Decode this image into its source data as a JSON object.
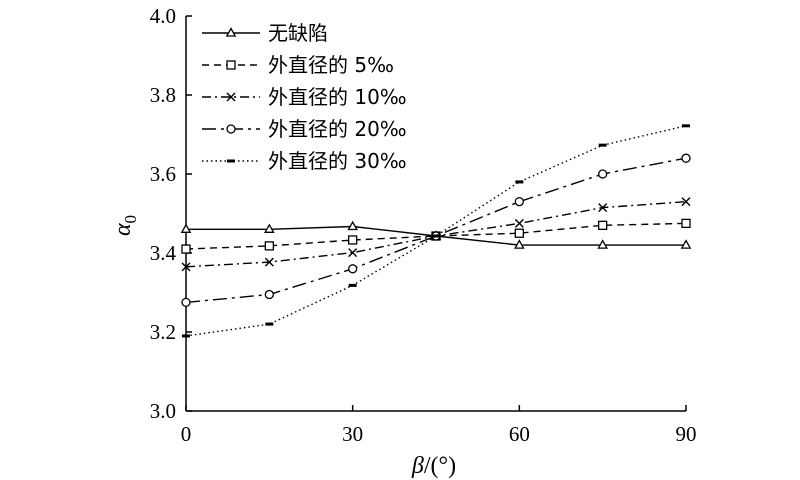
{
  "chart_data": {
    "type": "line",
    "title": "",
    "xlabel": {
      "main": "β",
      "suffix": "/(°)"
    },
    "ylabel": {
      "main": "α",
      "sub": "0"
    },
    "xlim": [
      0,
      90
    ],
    "ylim": [
      3.0,
      4.0
    ],
    "xticks": [
      "0",
      "30",
      "60",
      "90"
    ],
    "yticks": [
      "3.0",
      "3.2",
      "3.4",
      "3.6",
      "3.8",
      "4.0"
    ],
    "grid": false,
    "legend_position": "top-left",
    "x": [
      0,
      15,
      30,
      45,
      60,
      75,
      90
    ],
    "series": [
      {
        "name": "无缺陷",
        "marker": "triangle",
        "dash": "solid",
        "values": [
          3.46,
          3.46,
          3.467,
          3.443,
          3.42,
          3.42,
          3.42
        ]
      },
      {
        "name": "外直径的 5‰",
        "marker": "square",
        "dash": "dashed",
        "values": [
          3.41,
          3.418,
          3.433,
          3.443,
          3.45,
          3.47,
          3.475
        ]
      },
      {
        "name": "外直径的 10‰",
        "marker": "x",
        "dash": "dashdot",
        "values": [
          3.365,
          3.377,
          3.401,
          3.443,
          3.475,
          3.515,
          3.53
        ]
      },
      {
        "name": "外直径的 20‰",
        "marker": "circle",
        "dash": "longdashdot",
        "values": [
          3.275,
          3.295,
          3.36,
          3.443,
          3.53,
          3.6,
          3.64
        ]
      },
      {
        "name": "外直径的 30‰",
        "marker": "bar",
        "dash": "dotted",
        "values": [
          3.19,
          3.22,
          3.318,
          3.443,
          3.58,
          3.673,
          3.722
        ]
      }
    ]
  }
}
